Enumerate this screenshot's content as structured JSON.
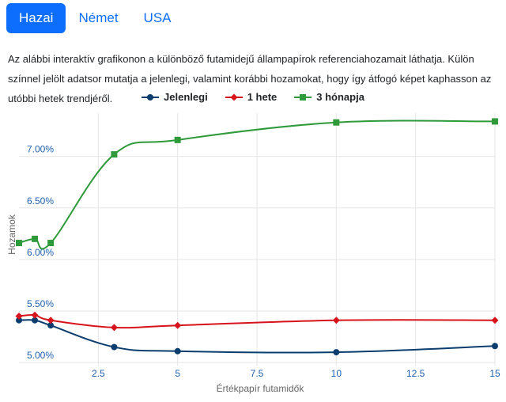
{
  "tabs": [
    {
      "label": "Hazai",
      "active": true
    },
    {
      "label": "Német",
      "active": false
    },
    {
      "label": "USA",
      "active": false
    }
  ],
  "description": "Az alábbi interaktív grafikonon a különböző futamidejű állampapírok referenciahozamait láthatja. Külön színnel jelölt adatsor mutatja a jelenlegi, valamint korábbi hozamokat, hogy így átfogó képet kaphasson az utóbbi hetek trendjéről.",
  "chart_data": {
    "type": "line",
    "xlabel": "Értékpapír futamidők",
    "ylabel": "Hozamok",
    "xlim": [
      0,
      15
    ],
    "ylim": [
      4.97,
      7.42
    ],
    "xticks": [
      2.5,
      5,
      7.5,
      10,
      12.5,
      15
    ],
    "xtick_labels": [
      "2.5",
      "5",
      "7.5",
      "10",
      "12.5",
      "15"
    ],
    "yticks": [
      5.0,
      5.5,
      6.0,
      6.5,
      7.0
    ],
    "ytick_labels": [
      "5.00%",
      "5.50%",
      "6.00%",
      "6.50%",
      "7.00%"
    ],
    "grid": true,
    "legend_position": "top-center",
    "series": [
      {
        "name": "Jelenlegi",
        "color": "#0b3d6e",
        "marker": "circle",
        "x": [
          0,
          0.5,
          1,
          3,
          5,
          10,
          15
        ],
        "y": [
          5.41,
          5.41,
          5.36,
          5.15,
          5.11,
          5.1,
          5.16
        ]
      },
      {
        "name": "1 hete",
        "color": "#d7141c",
        "marker": "diamond",
        "x": [
          0,
          0.5,
          1,
          3,
          5,
          10,
          15
        ],
        "y": [
          5.45,
          5.46,
          5.41,
          5.34,
          5.36,
          5.41,
          5.41
        ]
      },
      {
        "name": "3 hónapja",
        "color": "#2e9a3a",
        "marker": "square",
        "x": [
          0,
          0.5,
          1,
          3,
          5,
          10,
          15
        ],
        "y": [
          6.16,
          6.2,
          6.16,
          7.02,
          7.16,
          7.33,
          7.34
        ]
      }
    ]
  }
}
